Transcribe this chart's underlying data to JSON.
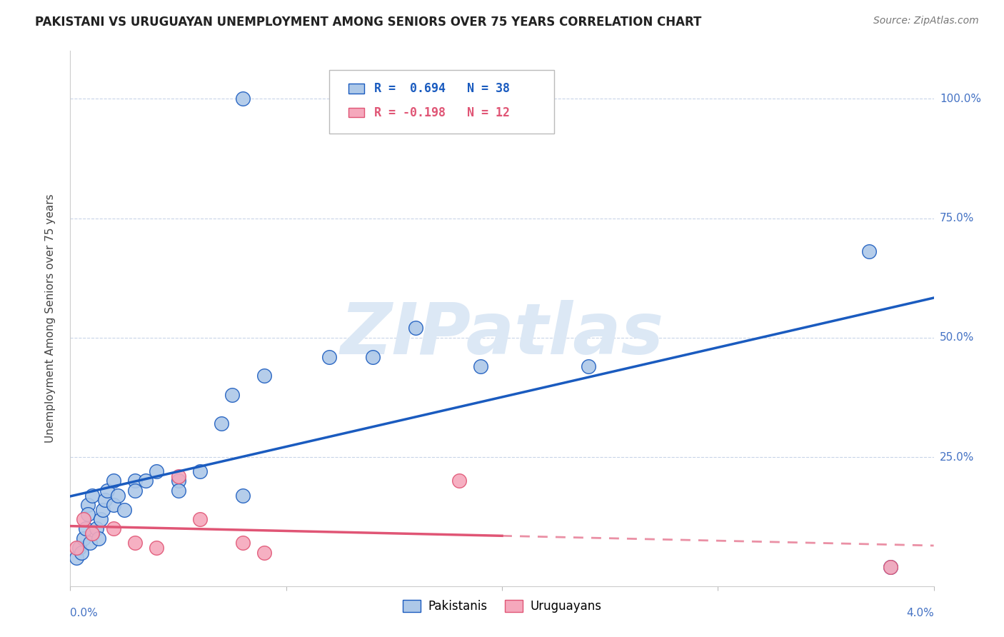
{
  "title": "PAKISTANI VS URUGUAYAN UNEMPLOYMENT AMONG SENIORS OVER 75 YEARS CORRELATION CHART",
  "source": "Source: ZipAtlas.com",
  "ylabel": "Unemployment Among Seniors over 75 years",
  "ytick_values": [
    0.0,
    0.25,
    0.5,
    0.75,
    1.0
  ],
  "ytick_labels": [
    "",
    "25.0%",
    "50.0%",
    "75.0%",
    "100.0%"
  ],
  "xlim": [
    0.0,
    0.04
  ],
  "ylim": [
    -0.02,
    1.1
  ],
  "legend_r_pak": "R =  0.694",
  "legend_n_pak": "N = 38",
  "legend_r_uru": "R = -0.198",
  "legend_n_uru": "N = 12",
  "pak_color": "#adc8e8",
  "uru_color": "#f5a8bc",
  "pak_line_color": "#1a5bbf",
  "uru_line_color": "#e05575",
  "watermark_color": "#dce8f5",
  "grid_color": "#c8d4e8",
  "pakistanis_x": [
    0.0003,
    0.0004,
    0.0005,
    0.0006,
    0.0007,
    0.0008,
    0.0008,
    0.0009,
    0.001,
    0.0012,
    0.0013,
    0.0014,
    0.0015,
    0.0016,
    0.0017,
    0.002,
    0.002,
    0.0022,
    0.0025,
    0.003,
    0.003,
    0.0035,
    0.004,
    0.005,
    0.005,
    0.006,
    0.007,
    0.0075,
    0.008,
    0.008,
    0.009,
    0.012,
    0.014,
    0.016,
    0.019,
    0.024,
    0.037,
    0.038
  ],
  "pakistanis_y": [
    0.04,
    0.06,
    0.05,
    0.08,
    0.1,
    0.15,
    0.13,
    0.07,
    0.17,
    0.1,
    0.08,
    0.12,
    0.14,
    0.16,
    0.18,
    0.15,
    0.2,
    0.17,
    0.14,
    0.2,
    0.18,
    0.2,
    0.22,
    0.2,
    0.18,
    0.22,
    0.32,
    0.38,
    1.0,
    0.17,
    0.42,
    0.46,
    0.46,
    0.52,
    0.44,
    0.44,
    0.68,
    0.02
  ],
  "uruguayans_x": [
    0.0003,
    0.0006,
    0.001,
    0.002,
    0.003,
    0.004,
    0.005,
    0.006,
    0.008,
    0.009,
    0.018,
    0.038
  ],
  "uruguayans_y": [
    0.06,
    0.12,
    0.09,
    0.1,
    0.07,
    0.06,
    0.21,
    0.12,
    0.07,
    0.05,
    0.2,
    0.02
  ]
}
